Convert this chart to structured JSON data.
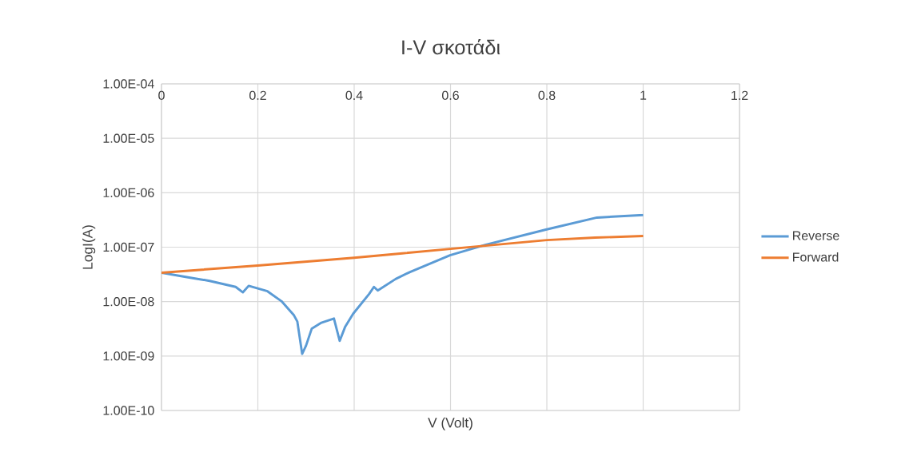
{
  "chart_data": {
    "type": "line",
    "title": "I-V  σκοτάδι",
    "xlabel": "V (Volt)",
    "ylabel": "LogI(A)",
    "series": [
      {
        "name": "Reverse",
        "color": "#5b9bd5",
        "x": [
          0,
          0.055,
          0.1,
          0.154,
          0.169,
          0.181,
          0.22,
          0.249,
          0.275,
          0.282,
          0.292,
          0.3,
          0.312,
          0.332,
          0.358,
          0.37,
          0.381,
          0.398,
          0.431,
          0.441,
          0.449,
          0.486,
          0.516,
          0.599,
          0.672,
          0.798,
          0.904,
          1.0
        ],
        "values": [
          3.4e-08,
          2.8e-08,
          2.4e-08,
          1.86e-08,
          1.48e-08,
          1.95e-08,
          1.55e-08,
          1.02e-08,
          5.6e-09,
          4.3e-09,
          1.1e-09,
          1.55e-09,
          3.2e-09,
          4.1e-09,
          4.9e-09,
          1.9e-09,
          3.4e-09,
          6e-09,
          1.38e-08,
          1.86e-08,
          1.6e-08,
          2.6e-08,
          3.5e-08,
          7.1e-08,
          1.1e-07,
          2.1e-07,
          3.5e-07,
          3.9e-07
        ]
      },
      {
        "name": "Forward",
        "color": "#ed7d31",
        "x": [
          0,
          0.2,
          0.4,
          0.5,
          0.6,
          0.8,
          0.9,
          1.0
        ],
        "values": [
          3.4e-08,
          4.6e-08,
          6.4e-08,
          7.7e-08,
          9.3e-08,
          1.35e-07,
          1.5e-07,
          1.6e-07
        ]
      }
    ],
    "xlim": [
      0,
      1.2
    ],
    "xticks": [
      0,
      0.2,
      0.4,
      0.6,
      0.8,
      1,
      1.2
    ],
    "ylim": [
      1e-10,
      0.0001
    ],
    "yticks": [
      {
        "value": 1e-10,
        "label": "1.00E-10"
      },
      {
        "value": 1e-09,
        "label": "1.00E-09"
      },
      {
        "value": 1e-08,
        "label": "1.00E-08"
      },
      {
        "value": 1e-07,
        "label": "1.00E-07"
      },
      {
        "value": 1e-06,
        "label": "1.00E-06"
      },
      {
        "value": 1e-05,
        "label": "1.00E-05"
      },
      {
        "value": 0.0001,
        "label": "1.00E-04"
      }
    ],
    "log": "y",
    "grid": true,
    "legend": "right"
  }
}
